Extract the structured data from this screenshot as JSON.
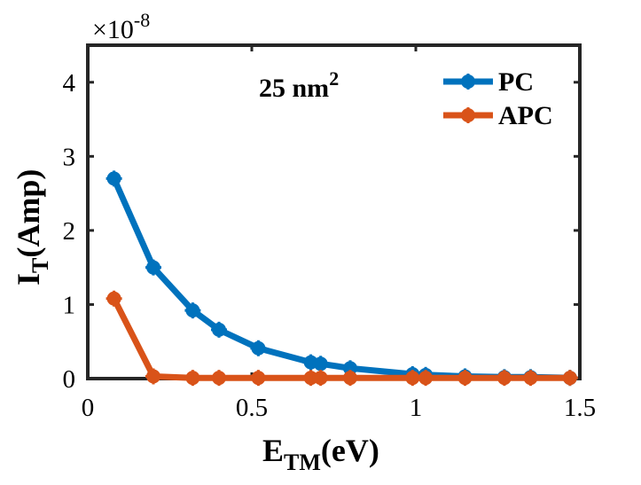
{
  "chart_data": {
    "type": "line",
    "x_label": {
      "main": "E",
      "sub": "TM",
      "rest": "(eV)"
    },
    "y_label": {
      "main": "I",
      "sub": "T",
      "rest": "(Amp)"
    },
    "y_multiplier": {
      "base": "×10",
      "exponent": "-8"
    },
    "annotation": {
      "text": "25 nm",
      "sup": "2"
    },
    "xlim": [
      0,
      1.5
    ],
    "ylim": [
      0,
      4.5
    ],
    "x_ticks": [
      0,
      0.5,
      1,
      1.5
    ],
    "x_tick_labels": [
      "0",
      "0.5",
      "1",
      "1.5"
    ],
    "y_ticks": [
      0,
      1,
      2,
      3,
      4
    ],
    "y_tick_labels": [
      "0",
      "1",
      "2",
      "3",
      "4"
    ],
    "grid": false,
    "legend_position": "top-right",
    "series": [
      {
        "name": "PC",
        "color": "#0072BD",
        "x": [
          0.08,
          0.2,
          0.32,
          0.4,
          0.52,
          0.68,
          0.71,
          0.8,
          0.99,
          1.03,
          1.15,
          1.27,
          1.35,
          1.47
        ],
        "y": [
          2.7,
          1.5,
          0.92,
          0.66,
          0.41,
          0.22,
          0.2,
          0.14,
          0.06,
          0.05,
          0.03,
          0.02,
          0.02,
          0.01
        ]
      },
      {
        "name": "APC",
        "color": "#D95319",
        "x": [
          0.08,
          0.2,
          0.32,
          0.4,
          0.52,
          0.68,
          0.71,
          0.8,
          0.99,
          1.03,
          1.15,
          1.27,
          1.35,
          1.47
        ],
        "y": [
          1.08,
          0.03,
          0.01,
          0.01,
          0.01,
          0.01,
          0.01,
          0.01,
          0.01,
          0.01,
          0.01,
          0.01,
          0.01,
          0.01
        ]
      }
    ]
  }
}
